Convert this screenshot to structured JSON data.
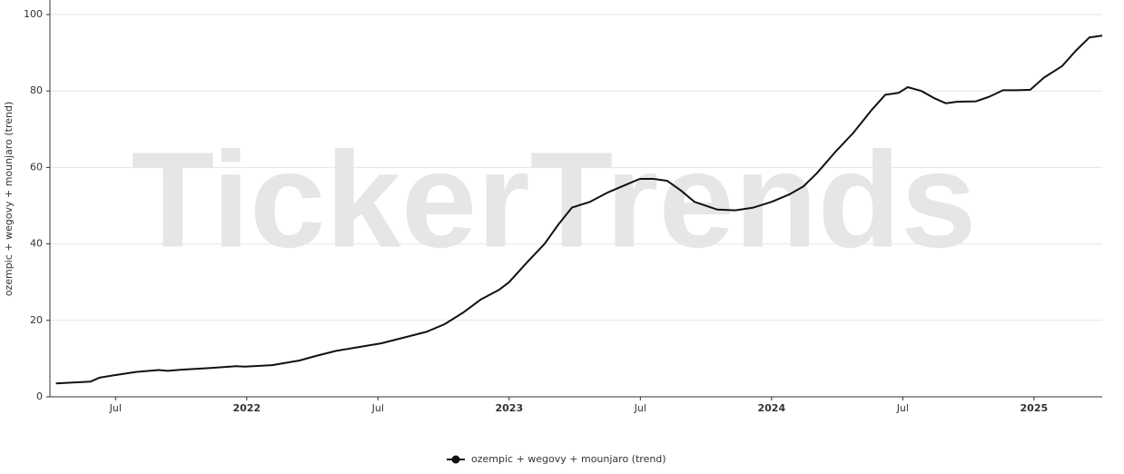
{
  "chart_data": {
    "type": "line",
    "watermark": "TickerTrends",
    "y_label": "ozempic + wegovy + mounjaro  (trend)",
    "legend": "bottom",
    "grid": true,
    "xlim": [
      2021.25,
      2025.26
    ],
    "xticks": [
      {
        "value": 2021.5,
        "label": "Jul"
      },
      2022,
      {
        "value": 2022.5,
        "label": "Jul"
      },
      2023,
      {
        "value": 2023.5,
        "label": "Jul"
      },
      2024,
      {
        "value": 2024.5,
        "label": "Jul"
      },
      2025
    ],
    "ylim": [
      0,
      100
    ],
    "yticks": [
      0,
      20,
      40,
      60,
      80,
      100
    ],
    "series": [
      {
        "name": "ozempic + wegovy + mounjaro  (trend)",
        "color": "#111111",
        "x": [
          2021.273,
          2021.405,
          2021.439,
          2021.509,
          2021.578,
          2021.664,
          2021.699,
          2021.751,
          2021.855,
          2021.958,
          2021.993,
          2022.097,
          2022.201,
          2022.27,
          2022.339,
          2022.408,
          2022.512,
          2022.616,
          2022.685,
          2022.754,
          2022.824,
          2022.893,
          2022.962,
          2023.0,
          2023.066,
          2023.135,
          2023.187,
          2023.239,
          2023.308,
          2023.377,
          2023.446,
          2023.498,
          2023.55,
          2023.602,
          2023.654,
          2023.706,
          2023.792,
          2023.862,
          2023.931,
          2024.0,
          2024.069,
          2024.121,
          2024.173,
          2024.242,
          2024.311,
          2024.381,
          2024.433,
          2024.484,
          2024.519,
          2024.571,
          2024.623,
          2024.664,
          2024.709,
          2024.779,
          2024.83,
          2024.882,
          2024.934,
          2024.986,
          2025.038,
          2025.107,
          2025.159,
          2025.211,
          2025.26
        ],
        "values": [
          3.5,
          4,
          5,
          5.8,
          6.5,
          7,
          6.8,
          7.1,
          7.5,
          8,
          7.9,
          8.3,
          9.5,
          10.8,
          12,
          12.8,
          14,
          15.8,
          17,
          19,
          22,
          25.5,
          28,
          30,
          35,
          40,
          45,
          49.5,
          51,
          53.5,
          55.5,
          57,
          57,
          56.5,
          54,
          51,
          49,
          48.8,
          49.5,
          51,
          53,
          55,
          58.5,
          64,
          69,
          75,
          79,
          79.5,
          81,
          80,
          78,
          76.8,
          77.2,
          77.3,
          78.5,
          80.2,
          80.2,
          80.3,
          83.5,
          86.5,
          90.5,
          94,
          94.5
        ]
      }
    ]
  }
}
